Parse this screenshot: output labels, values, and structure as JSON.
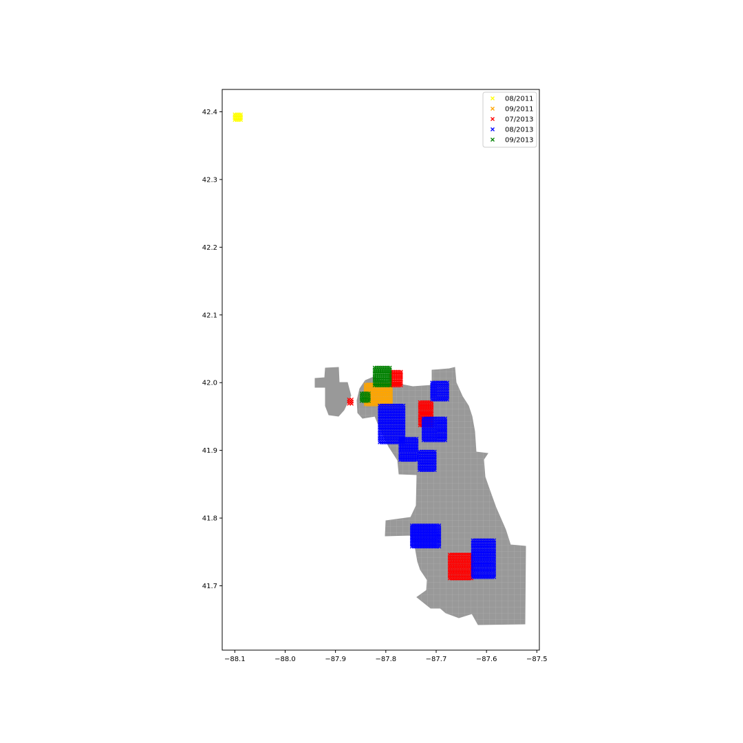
{
  "chart_data": {
    "type": "scatter",
    "title": "",
    "xlabel": "",
    "ylabel": "",
    "xlim": [
      -88.125,
      -87.495
    ],
    "ylim": [
      41.605,
      42.433
    ],
    "xticks": [
      -88.1,
      -88.0,
      -87.9,
      -87.8,
      -87.7,
      -87.6,
      -87.5
    ],
    "xtick_labels": [
      "−88.1",
      "−88.0",
      "−87.9",
      "−87.8",
      "−87.7",
      "−87.6",
      "−87.5"
    ],
    "yticks": [
      41.7,
      41.8,
      41.9,
      42.0,
      42.1,
      42.2,
      42.3,
      42.4
    ],
    "ytick_labels": [
      "41.7",
      "41.8",
      "41.9",
      "42.0",
      "42.1",
      "42.2",
      "42.3",
      "42.4"
    ],
    "grid": false,
    "legend_position": "top-right",
    "marker": "x",
    "basemap_color": "#999999",
    "series": [
      {
        "name": "08/2011",
        "color": "#ffff00",
        "clusters": [
          {
            "x": [
              -88.1,
              -88.088
            ],
            "y": [
              42.388,
              42.396
            ]
          }
        ]
      },
      {
        "name": "09/2011",
        "color": "#ffa500",
        "clusters": [
          {
            "x": [
              -87.84,
              -87.79
            ],
            "y": [
              41.968,
              41.997
            ]
          }
        ]
      },
      {
        "name": "07/2013",
        "color": "#ff0000",
        "clusters": [
          {
            "x": [
              -87.789,
              -87.77
            ],
            "y": [
              41.996,
              42.016
            ]
          },
          {
            "x": [
              -87.732,
              -87.709
            ],
            "y": [
              41.937,
              41.971
            ]
          },
          {
            "x": [
              -87.673,
              -87.63
            ],
            "y": [
              41.711,
              41.746
            ]
          },
          {
            "x": [
              -87.873,
              -87.868
            ],
            "y": [
              41.969,
              41.975
            ]
          }
        ]
      },
      {
        "name": "08/2013",
        "color": "#0000ff",
        "clusters": [
          {
            "x": [
              -87.708,
              -87.678
            ],
            "y": [
              41.975,
              42.0
            ]
          },
          {
            "x": [
              -87.725,
              -87.682
            ],
            "y": [
              41.915,
              41.947
            ]
          },
          {
            "x": [
              -87.812,
              -87.765
            ],
            "y": [
              41.912,
              41.966
            ]
          },
          {
            "x": [
              -87.771,
              -87.739
            ],
            "y": [
              41.886,
              41.917
            ]
          },
          {
            "x": [
              -87.733,
              -87.703
            ],
            "y": [
              41.871,
              41.898
            ]
          },
          {
            "x": [
              -87.748,
              -87.694
            ],
            "y": [
              41.758,
              41.789
            ]
          },
          {
            "x": [
              -87.627,
              -87.585
            ],
            "y": [
              41.713,
              41.767
            ]
          }
        ]
      },
      {
        "name": "09/2013",
        "color": "#008000",
        "clusters": [
          {
            "x": [
              -87.822,
              -87.792
            ],
            "y": [
              41.996,
              42.022
            ]
          },
          {
            "x": [
              -87.848,
              -87.834
            ],
            "y": [
              41.973,
              41.984
            ]
          }
        ]
      }
    ]
  }
}
